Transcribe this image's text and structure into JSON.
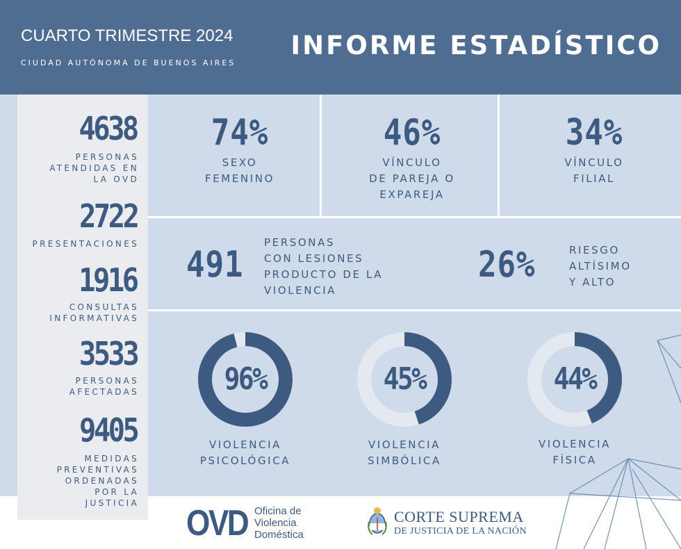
{
  "header": {
    "period": "CUARTO TRIMESTRE 2024",
    "location": "CIUDAD AUTÓNOMA DE BUENOS AIRES",
    "title": "INFORME ESTADÍSTICO"
  },
  "sidebar": [
    {
      "value": "4638",
      "label": "PERSONAS\nATENDIDAS EN\nLA OVD"
    },
    {
      "value": "2722",
      "label": "PRESENTACIONES"
    },
    {
      "value": "1916",
      "label": "CONSULTAS\nINFORMATIVAS"
    },
    {
      "value": "3533",
      "label": "PERSONAS\nAFECTADAS"
    },
    {
      "value": "9405",
      "label": "MEDIDAS\nPREVENTIVAS\nORDENADAS\nPOR LA\nJUSTICIA"
    }
  ],
  "top_stats": [
    {
      "value": "74%",
      "label": "SEXO\nFEMENINO"
    },
    {
      "value": "46%",
      "label": "VÍNCULO\nDE PAREJA O\nEXPAREJA"
    },
    {
      "value": "34%",
      "label": "VÍNCULO\nFILIAL"
    }
  ],
  "middle": {
    "injuries_value": "491",
    "injuries_label": "PERSONAS\nCON LESIONES\nPRODUCTO DE LA\nVIOLENCIA",
    "risk_value": "26%",
    "risk_label": "RIESGO\nALTÍSIMO\nY ALTO"
  },
  "violence_types": [
    {
      "percent": 96,
      "value": "96%",
      "label": "VIOLENCIA\nPSICOLÓGICA"
    },
    {
      "percent": 45,
      "value": "45%",
      "label": "VIOLENCIA\nSIMBÓLICA"
    },
    {
      "percent": 44,
      "value": "44%",
      "label": "VIOLENCIA\nFÍSICA"
    }
  ],
  "footer": {
    "ovd_logo": "OVD",
    "ovd_name": "Oficina de\nViolencia\nDoméstica",
    "court_line1": "CORTE SUPREMA",
    "court_line2": "DE JUSTICIA DE LA NACIÓN"
  },
  "colors": {
    "header_bg": "#4f6d91",
    "panel_bg": "#cfdbea",
    "sidebar_bg": "#eaecef",
    "accent": "#3d5a80",
    "ring_track": "#e4e8ef"
  }
}
